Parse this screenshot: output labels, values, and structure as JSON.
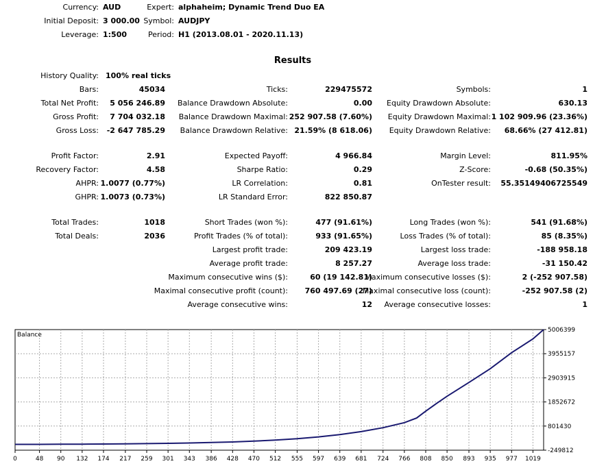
{
  "header": [
    {
      "label": "Currency:",
      "value": "AUD"
    },
    {
      "label": "Initial Deposit:",
      "value": "3 000.00"
    },
    {
      "label": "Leverage:",
      "value": "1:500"
    },
    {
      "label": "Expert:",
      "value": "alphaheim; Dynamic Trend Duo EA"
    },
    {
      "label": "Symbol:",
      "value": "AUDJPY"
    },
    {
      "label": "Period:",
      "value": "H1 (2013.08.01 - 2020.11.13)"
    }
  ],
  "results_title": "Results",
  "history_quality": {
    "label": "History Quality:",
    "value": "100% real ticks"
  },
  "col1": [
    {
      "label": "Bars:",
      "value": "45034"
    },
    {
      "label": "Total Net Profit:",
      "value": "5 056 246.89"
    },
    {
      "label": "Gross Profit:",
      "value": "7 704 032.18"
    },
    {
      "label": "Gross Loss:",
      "value": "-2 647 785.29"
    },
    {
      "label": "Profit Factor:",
      "value": "2.91"
    },
    {
      "label": "Recovery Factor:",
      "value": "4.58"
    },
    {
      "label": "AHPR:",
      "value": "1.0077 (0.77%)"
    },
    {
      "label": "GHPR:",
      "value": "1.0073 (0.73%)"
    },
    {
      "label": "Total Trades:",
      "value": "1018"
    },
    {
      "label": "Total Deals:",
      "value": "2036"
    }
  ],
  "col2": [
    {
      "label": "Ticks:",
      "value": "229475572"
    },
    {
      "label": "Balance Drawdown Absolute:",
      "value": "0.00"
    },
    {
      "label": "Balance Drawdown Maximal:",
      "value": "252 907.58 (7.60%)"
    },
    {
      "label": "Balance Drawdown Relative:",
      "value": "21.59% (8 618.06)"
    },
    {
      "label": "Expected Payoff:",
      "value": "4 966.84"
    },
    {
      "label": "Sharpe Ratio:",
      "value": "0.29"
    },
    {
      "label": "LR Correlation:",
      "value": "0.81"
    },
    {
      "label": "LR Standard Error:",
      "value": "822 850.87"
    },
    {
      "label": "Short Trades (won %):",
      "value": "477 (91.61%)"
    },
    {
      "label": "Profit Trades (% of total):",
      "value": "933 (91.65%)"
    },
    {
      "label": "Largest profit trade:",
      "value": "209 423.19"
    },
    {
      "label": "Average profit trade:",
      "value": "8 257.27"
    },
    {
      "label": "Maximum consecutive wins ($):",
      "value": "60 (19 142.81)"
    },
    {
      "label": "Maximal consecutive profit (count):",
      "value": "760 497.69 (27)"
    },
    {
      "label": "Average consecutive wins:",
      "value": "12"
    }
  ],
  "col3": [
    {
      "label": "Symbols:",
      "value": "1"
    },
    {
      "label": "Equity Drawdown Absolute:",
      "value": "630.13"
    },
    {
      "label": "Equity Drawdown Maximal:",
      "value": "1 102 909.96 (23.36%)"
    },
    {
      "label": "Equity Drawdown Relative:",
      "value": "68.66% (27 412.81)"
    },
    {
      "label": "Margin Level:",
      "value": "811.95%"
    },
    {
      "label": "Z-Score:",
      "value": "-0.68 (50.35%)"
    },
    {
      "label": "OnTester result:",
      "value": "55.35149406725549"
    },
    {
      "label": "Long Trades (won %):",
      "value": "541 (91.68%)"
    },
    {
      "label": "Loss Trades (% of total):",
      "value": "85 (8.35%)"
    },
    {
      "label": "Largest loss trade:",
      "value": "-188 958.18"
    },
    {
      "label": "Average loss trade:",
      "value": "-31 150.42"
    },
    {
      "label": "Maximum consecutive losses ($):",
      "value": "2 (-252 907.58)"
    },
    {
      "label": "Maximal consecutive loss (count):",
      "value": "-252 907.58 (2)"
    },
    {
      "label": "Average consecutive losses:",
      "value": "1"
    }
  ],
  "chart_data": {
    "type": "line",
    "legend": "Balance",
    "line_color": "#191970",
    "xticks": [
      "0",
      "48",
      "90",
      "132",
      "174",
      "217",
      "259",
      "301",
      "343",
      "386",
      "428",
      "470",
      "512",
      "555",
      "597",
      "639",
      "681",
      "724",
      "766",
      "808",
      "850",
      "893",
      "935",
      "977",
      "1019"
    ],
    "yticks": [
      "5006399",
      "3955157",
      "2903915",
      "1852672",
      "801430",
      "-249812"
    ],
    "xlim": [
      0,
      1040
    ],
    "ylim": [
      -249812,
      5006399
    ],
    "x": [
      0,
      48,
      90,
      132,
      174,
      217,
      259,
      301,
      343,
      386,
      428,
      470,
      512,
      555,
      597,
      639,
      681,
      724,
      766,
      790,
      808,
      830,
      850,
      893,
      935,
      977,
      1019,
      1040
    ],
    "y": [
      3000,
      5000,
      9000,
      14000,
      20000,
      28000,
      38000,
      50000,
      65000,
      85000,
      110000,
      145000,
      190000,
      250000,
      330000,
      430000,
      560000,
      730000,
      950000,
      1150000,
      1450000,
      1800000,
      2100000,
      2700000,
      3300000,
      4000000,
      4600000,
      5006399
    ]
  }
}
